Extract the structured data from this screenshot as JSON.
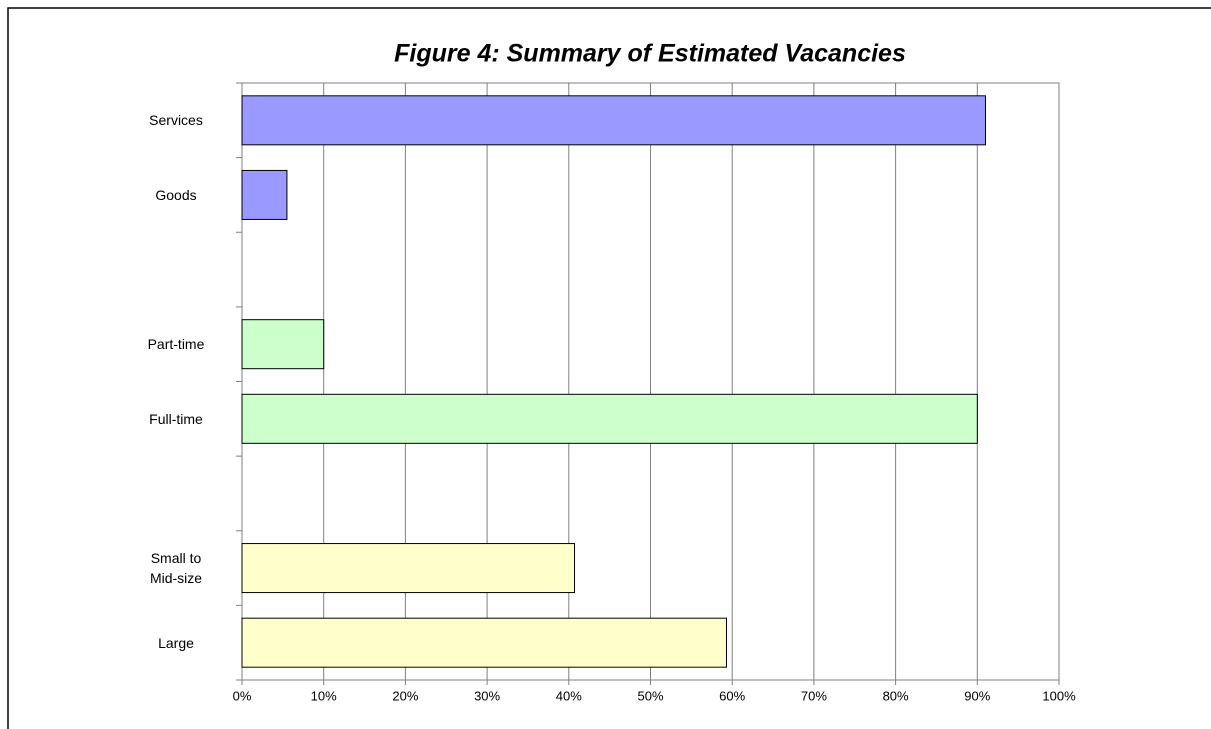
{
  "chart_data": {
    "type": "barh",
    "title": "Figure 4:  Summary of Estimated Vacancies",
    "categories": [
      "Services",
      "Goods",
      null,
      "Part-time",
      "Full-time",
      null,
      "Small to Mid-size",
      "Large"
    ],
    "values": [
      91,
      5.5,
      null,
      10,
      90,
      null,
      40.7,
      59.3
    ],
    "colors": [
      "#9999ff",
      "#9999ff",
      null,
      "#ccffcc",
      "#ccffcc",
      null,
      "#ffffcc",
      "#ffffcc"
    ],
    "xlim": [
      0,
      100
    ],
    "xticks": [
      {
        "value": 0,
        "label": "0%"
      },
      {
        "value": 10,
        "label": "10%"
      },
      {
        "value": 20,
        "label": "20%"
      },
      {
        "value": 30,
        "label": "30%"
      },
      {
        "value": 40,
        "label": "40%"
      },
      {
        "value": 50,
        "label": "50%"
      },
      {
        "value": 60,
        "label": "60%"
      },
      {
        "value": 70,
        "label": "70%"
      },
      {
        "value": 80,
        "label": "80%"
      },
      {
        "value": 90,
        "label": "90%"
      },
      {
        "value": 100,
        "label": "100%"
      }
    ],
    "grid": true
  }
}
